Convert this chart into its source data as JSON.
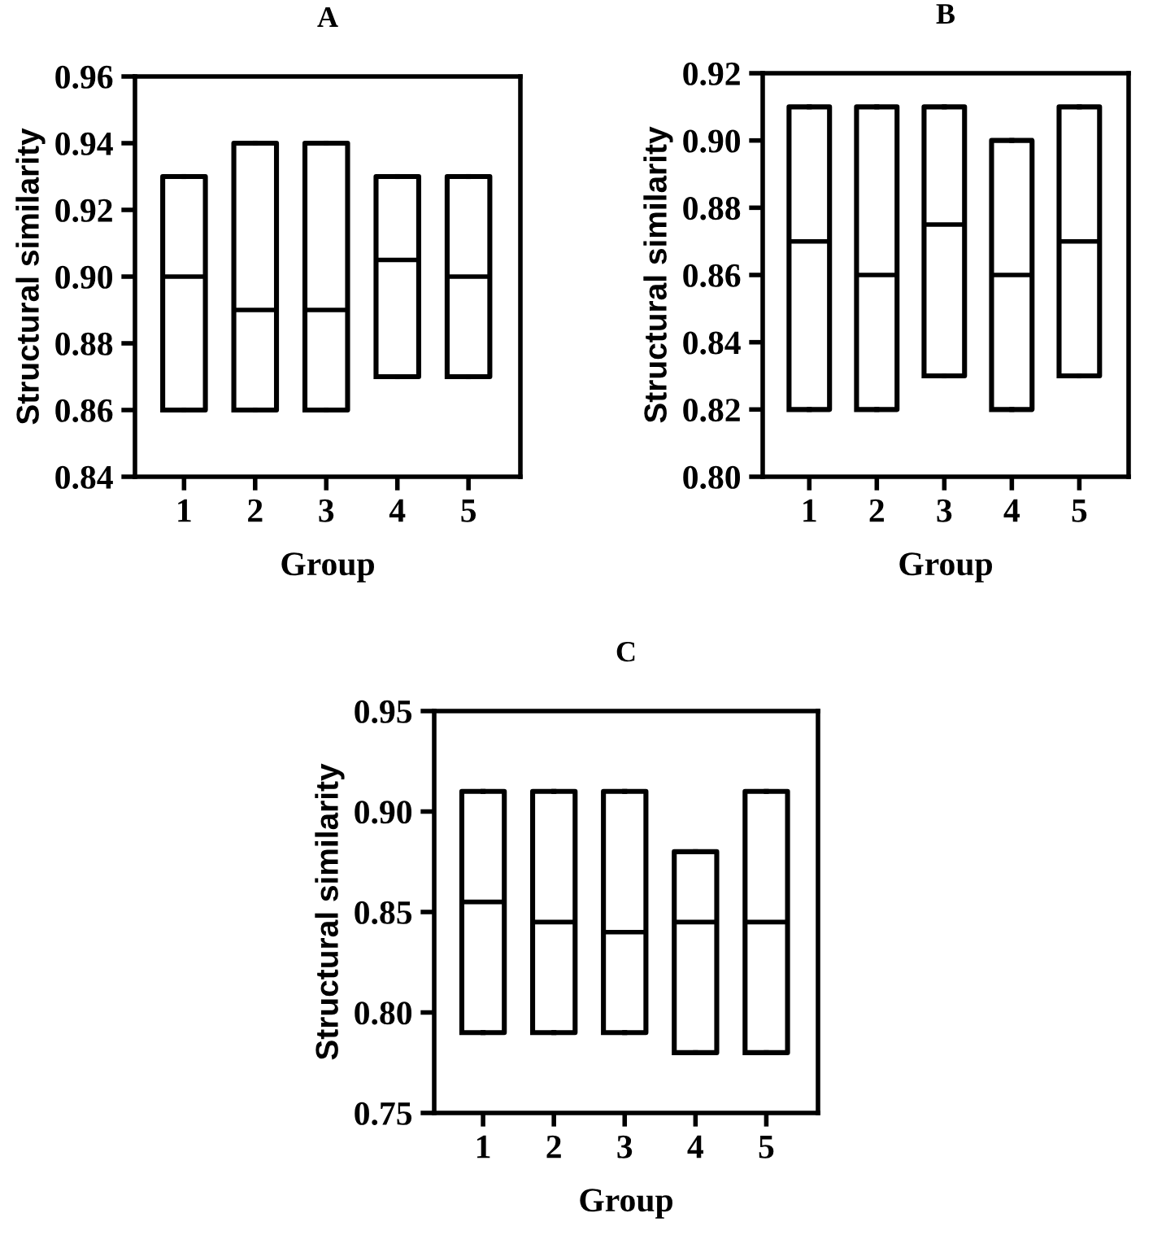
{
  "chart_data": [
    {
      "type": "box",
      "title": "A",
      "xlabel": "Group",
      "ylabel": "Structural similarity",
      "categories": [
        "1",
        "2",
        "3",
        "4",
        "5"
      ],
      "ylim": [
        0.84,
        0.96
      ],
      "yticks": [
        {
          "value": 0.84,
          "label": "0.84"
        },
        {
          "value": 0.86,
          "label": "0.86"
        },
        {
          "value": 0.88,
          "label": "0.88"
        },
        {
          "value": 0.9,
          "label": "0.90"
        },
        {
          "value": 0.92,
          "label": "0.92"
        },
        {
          "value": 0.94,
          "label": "0.94"
        },
        {
          "value": 0.96,
          "label": "0.96"
        }
      ],
      "grid": false,
      "legend": false,
      "boxes": [
        {
          "low": 0.86,
          "q1": 0.86,
          "median": 0.9,
          "q3": 0.93,
          "high": 0.93
        },
        {
          "low": 0.86,
          "q1": 0.86,
          "median": 0.89,
          "q3": 0.94,
          "high": 0.94
        },
        {
          "low": 0.86,
          "q1": 0.86,
          "median": 0.89,
          "q3": 0.94,
          "high": 0.94
        },
        {
          "low": 0.87,
          "q1": 0.87,
          "median": 0.905,
          "q3": 0.93,
          "high": 0.93
        },
        {
          "low": 0.87,
          "q1": 0.87,
          "median": 0.9,
          "q3": 0.93,
          "high": 0.93
        }
      ]
    },
    {
      "type": "box",
      "title": "B",
      "xlabel": "Group",
      "ylabel": "Structural similarity",
      "categories": [
        "1",
        "2",
        "3",
        "4",
        "5"
      ],
      "ylim": [
        0.8,
        0.92
      ],
      "yticks": [
        {
          "value": 0.8,
          "label": "0.80"
        },
        {
          "value": 0.82,
          "label": "0.82"
        },
        {
          "value": 0.84,
          "label": "0.84"
        },
        {
          "value": 0.86,
          "label": "0.86"
        },
        {
          "value": 0.88,
          "label": "0.88"
        },
        {
          "value": 0.9,
          "label": "0.90"
        },
        {
          "value": 0.92,
          "label": "0.92"
        }
      ],
      "grid": false,
      "legend": false,
      "boxes": [
        {
          "low": 0.82,
          "q1": 0.82,
          "median": 0.87,
          "q3": 0.91,
          "high": 0.91
        },
        {
          "low": 0.82,
          "q1": 0.82,
          "median": 0.86,
          "q3": 0.91,
          "high": 0.91
        },
        {
          "low": 0.83,
          "q1": 0.83,
          "median": 0.875,
          "q3": 0.91,
          "high": 0.91
        },
        {
          "low": 0.82,
          "q1": 0.82,
          "median": 0.86,
          "q3": 0.9,
          "high": 0.9
        },
        {
          "low": 0.83,
          "q1": 0.83,
          "median": 0.87,
          "q3": 0.91,
          "high": 0.91
        }
      ]
    },
    {
      "type": "box",
      "title": "C",
      "xlabel": "Group",
      "ylabel": "Structural similarity",
      "categories": [
        "1",
        "2",
        "3",
        "4",
        "5"
      ],
      "ylim": [
        0.75,
        0.95
      ],
      "yticks": [
        {
          "value": 0.75,
          "label": "0.75"
        },
        {
          "value": 0.8,
          "label": "0.80"
        },
        {
          "value": 0.85,
          "label": "0.85"
        },
        {
          "value": 0.9,
          "label": "0.90"
        },
        {
          "value": 0.95,
          "label": "0.95"
        }
      ],
      "grid": false,
      "legend": false,
      "boxes": [
        {
          "low": 0.79,
          "q1": 0.79,
          "median": 0.855,
          "q3": 0.91,
          "high": 0.91
        },
        {
          "low": 0.79,
          "q1": 0.79,
          "median": 0.845,
          "q3": 0.91,
          "high": 0.91
        },
        {
          "low": 0.79,
          "q1": 0.79,
          "median": 0.84,
          "q3": 0.91,
          "high": 0.91
        },
        {
          "low": 0.78,
          "q1": 0.78,
          "median": 0.845,
          "q3": 0.88,
          "high": 0.88
        },
        {
          "low": 0.78,
          "q1": 0.78,
          "median": 0.845,
          "q3": 0.91,
          "high": 0.91
        }
      ]
    }
  ]
}
